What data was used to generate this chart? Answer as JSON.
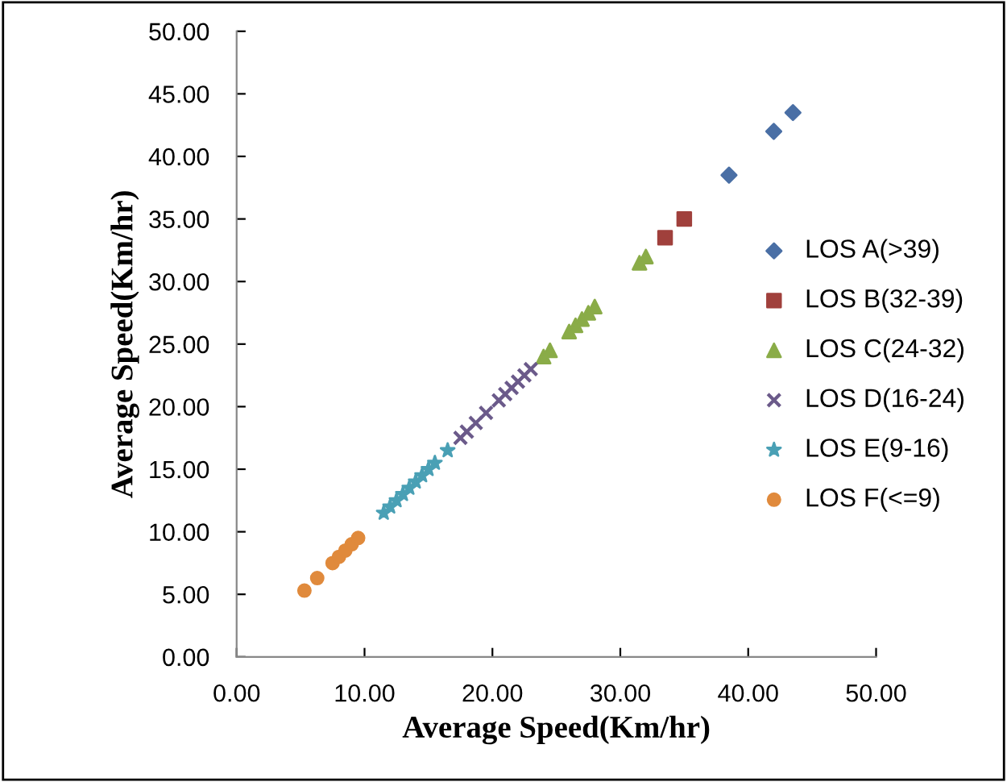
{
  "chart_data": {
    "type": "scatter",
    "xlabel": "Average Speed(Km/hr)",
    "ylabel": "Average Speed(Km/hr)",
    "xlim": [
      0,
      50
    ],
    "ylim": [
      0,
      50
    ],
    "xticks": [
      {
        "value": 0,
        "label": "0.00"
      },
      {
        "value": 10,
        "label": "10.00"
      },
      {
        "value": 20,
        "label": "20.00"
      },
      {
        "value": 30,
        "label": "30.00"
      },
      {
        "value": 40,
        "label": "40.00"
      },
      {
        "value": 50,
        "label": "50.00"
      }
    ],
    "yticks": [
      {
        "value": 0,
        "label": "0.00"
      },
      {
        "value": 5,
        "label": "5.00"
      },
      {
        "value": 10,
        "label": "10.00"
      },
      {
        "value": 15,
        "label": "15.00"
      },
      {
        "value": 20,
        "label": "20.00"
      },
      {
        "value": 25,
        "label": "25.00"
      },
      {
        "value": 30,
        "label": "30.00"
      },
      {
        "value": 35,
        "label": "35.00"
      },
      {
        "value": 40,
        "label": "40.00"
      },
      {
        "value": 45,
        "label": "45.00"
      },
      {
        "value": 50,
        "label": "50.00"
      }
    ],
    "grid": false,
    "legend": "right",
    "series": [
      {
        "name": "LOS A(>39)",
        "color": "#4a6fa5",
        "marker": "diamond",
        "x": [
          38.5,
          42,
          43.5
        ],
        "values": [
          38.5,
          42,
          43.5
        ]
      },
      {
        "name": "LOS B(32-39)",
        "color": "#a0403c",
        "marker": "square",
        "x": [
          33.5,
          35
        ],
        "values": [
          33.5,
          35
        ]
      },
      {
        "name": "LOS C(24-32)",
        "color": "#8aac48",
        "marker": "triangle",
        "x": [
          24,
          24.5,
          26,
          26.5,
          27,
          27.5,
          28,
          31.5,
          32
        ],
        "values": [
          24,
          24.5,
          26,
          26.5,
          27,
          27.5,
          28,
          31.5,
          32
        ]
      },
      {
        "name": "LOS D(16-24)",
        "color": "#6b5a8a",
        "marker": "cross",
        "x": [
          17.5,
          18,
          18.7,
          19.5,
          20.5,
          21,
          21.5,
          22,
          22.5,
          23
        ],
        "values": [
          17.5,
          18,
          18.7,
          19.5,
          20.5,
          21,
          21.5,
          22,
          22.5,
          23
        ]
      },
      {
        "name": "LOS E(9-16)",
        "color": "#4aa0b5",
        "marker": "star",
        "x": [
          11.5,
          12,
          12.5,
          13,
          13.5,
          14,
          14.5,
          15,
          15.5,
          16.5
        ],
        "values": [
          11.5,
          12,
          12.5,
          13,
          13.5,
          14,
          14.5,
          15,
          15.5,
          16.5
        ]
      },
      {
        "name": "LOS F(<=9)",
        "color": "#e08a3c",
        "marker": "circle",
        "x": [
          5.3,
          6.3,
          7.5,
          8,
          8.5,
          9,
          9.5
        ],
        "values": [
          5.3,
          6.3,
          7.5,
          8,
          8.5,
          9,
          9.5
        ]
      }
    ]
  }
}
